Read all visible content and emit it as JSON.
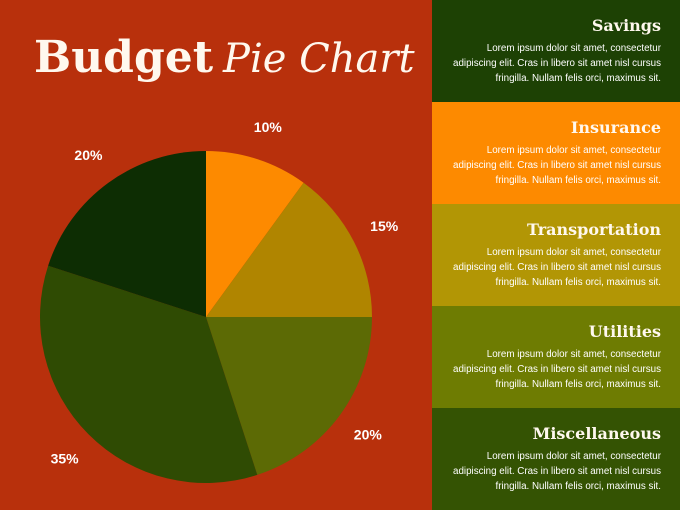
{
  "title": {
    "bold": "Budget",
    "script": "Pie Chart"
  },
  "chart_data": {
    "type": "pie",
    "start_angle_deg": 0,
    "direction": "clockwise",
    "slices": [
      {
        "label": "10%",
        "value": 10,
        "color": "#fd8a00"
      },
      {
        "label": "15%",
        "value": 15,
        "color": "#b08500"
      },
      {
        "label": "20%",
        "value": 20,
        "color": "#5c6a05"
      },
      {
        "label": "35%",
        "value": 35,
        "color": "#2f4b03"
      },
      {
        "label": "20%",
        "value": 20,
        "color": "#0d2d03"
      }
    ]
  },
  "panels": [
    {
      "heading": "Savings",
      "text": "Lorem ipsum dolor sit amet, consectetur adipiscing elit. Cras in libero sit amet nisl cursus fringilla. Nullam felis orci, maximus sit.",
      "color": "#1d4104"
    },
    {
      "heading": "Insurance",
      "text": "Lorem ipsum dolor sit amet, consectetur adipiscing elit. Cras in libero sit amet nisl cursus fringilla. Nullam felis orci, maximus sit.",
      "color": "#fd8a00"
    },
    {
      "heading": "Transportation",
      "text": "Lorem ipsum dolor sit amet, consectetur adipiscing elit. Cras in libero sit amet nisl cursus fringilla. Nullam felis orci, maximus sit.",
      "color": "#b29605"
    },
    {
      "heading": "Utilities",
      "text": "Lorem ipsum dolor sit amet, consectetur adipiscing elit. Cras in libero sit amet nisl cursus fringilla. Nullam felis orci, maximus sit.",
      "color": "#6e7c02"
    },
    {
      "heading": "Miscellaneous",
      "text": "Lorem ipsum dolor sit amet, consectetur adipiscing elit. Cras in libero sit amet nisl cursus fringilla. Nullam felis orci, maximus sit.",
      "color": "#345303"
    }
  ]
}
